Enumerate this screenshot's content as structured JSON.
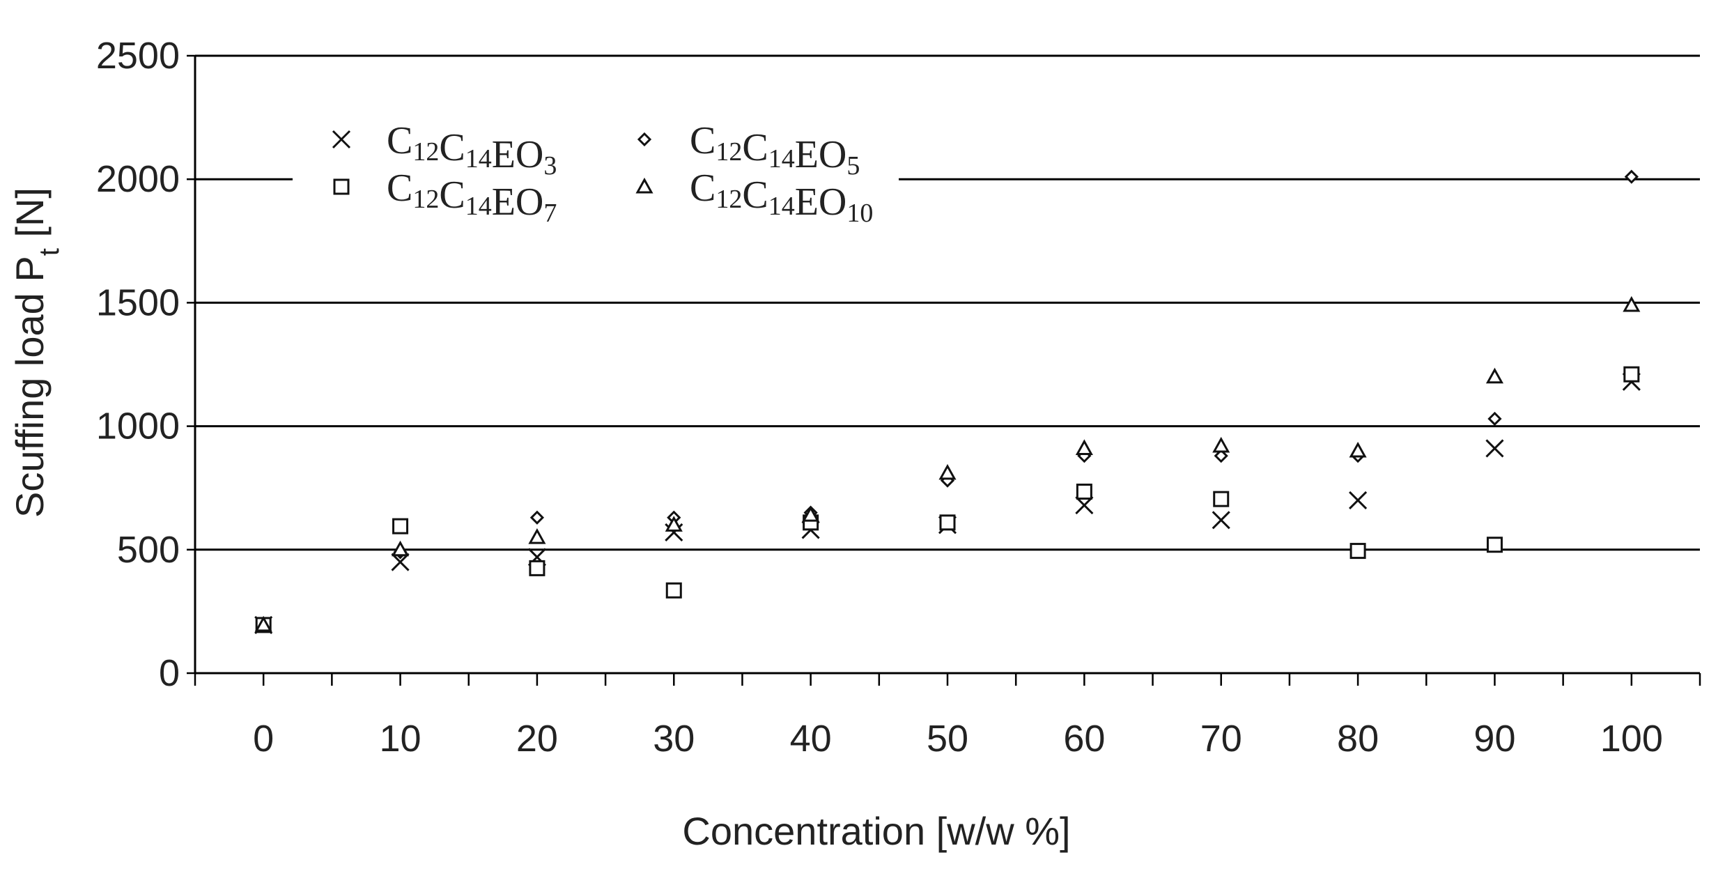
{
  "chart_data": {
    "type": "scatter",
    "xlabel": "Concentration [w/w %]",
    "ylabel": "Scuffing load P",
    "ylabel_sub": "t",
    "ylabel_unit": " [N]",
    "xlim": [
      -5,
      105
    ],
    "ylim": [
      0,
      2500
    ],
    "x_ticks": [
      "0",
      "10",
      "20",
      "30",
      "40",
      "50",
      "60",
      "70",
      "80",
      "90",
      "100"
    ],
    "y_ticks": [
      "0",
      "500",
      "1000",
      "1500",
      "2000",
      "2500"
    ],
    "grid": "horizontal",
    "legend_position": "top-left",
    "x": [
      0,
      10,
      20,
      30,
      40,
      50,
      60,
      70,
      80,
      90,
      100
    ],
    "series": [
      {
        "name": "C12C14EO3",
        "name_parts": [
          {
            "t": "C",
            "s": "12"
          },
          {
            "t": "C",
            "s": "14"
          },
          {
            "t": "EO",
            "s": "3"
          }
        ],
        "marker": "x",
        "values": [
          195,
          450,
          470,
          570,
          580,
          600,
          680,
          620,
          700,
          910,
          1180
        ]
      },
      {
        "name": "C12C14EO5",
        "name_parts": [
          {
            "t": "C",
            "s": "12"
          },
          {
            "t": "C",
            "s": "14"
          },
          {
            "t": "EO",
            "s": "5"
          }
        ],
        "marker": "diamond",
        "values": [
          195,
          490,
          630,
          630,
          650,
          780,
          880,
          880,
          880,
          1030,
          2010
        ]
      },
      {
        "name": "C12C14EO7",
        "name_parts": [
          {
            "t": "C",
            "s": "12"
          },
          {
            "t": "C",
            "s": "14"
          },
          {
            "t": "EO",
            "s": "7"
          }
        ],
        "marker": "square",
        "values": [
          195,
          595,
          425,
          335,
          610,
          610,
          735,
          705,
          495,
          520,
          1210
        ]
      },
      {
        "name": "C12C14EO10",
        "name_parts": [
          {
            "t": "C",
            "s": "12"
          },
          {
            "t": "C",
            "s": "14"
          },
          {
            "t": "EO",
            "s": "10"
          }
        ],
        "marker": "triangle",
        "values": [
          195,
          500,
          550,
          600,
          640,
          810,
          910,
          920,
          900,
          1200,
          1490
        ]
      }
    ]
  }
}
